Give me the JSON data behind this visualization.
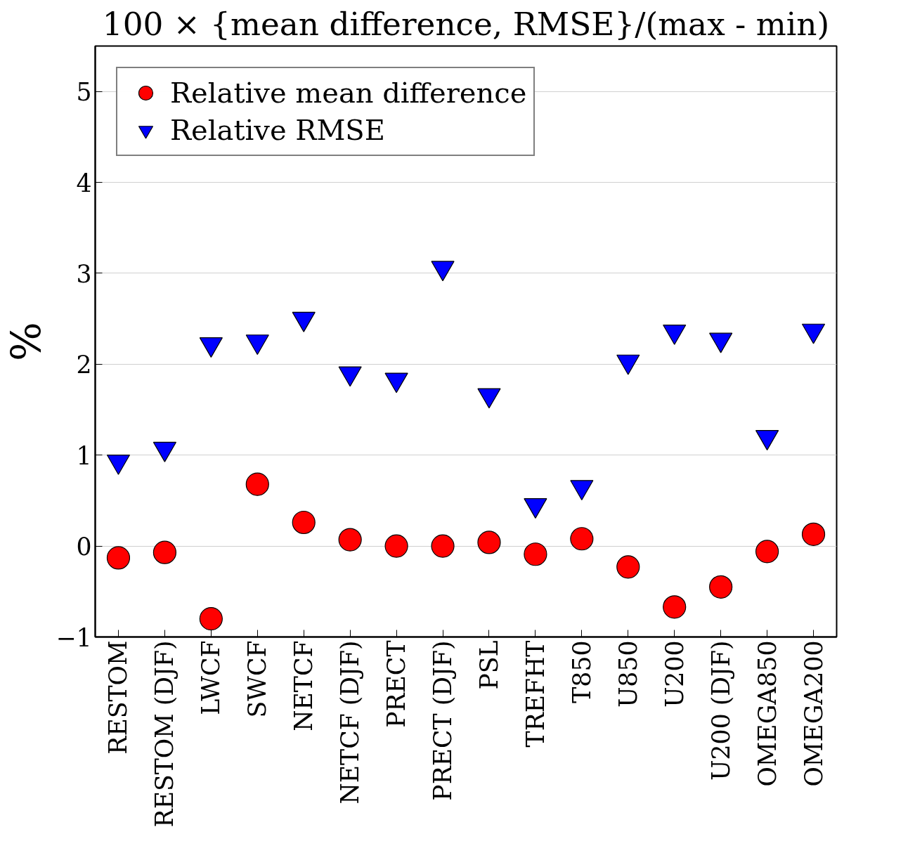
{
  "chart_data": {
    "type": "scatter",
    "title": "100 × {mean difference, RMSE}/(max - min)",
    "ylabel": "%",
    "categories": [
      "RESTOM",
      "RESTOM (DJF)",
      "LWCF",
      "SWCF",
      "NETCF",
      "NETCF (DJF)",
      "PRECT",
      "PRECT (DJF)",
      "PSL",
      "TREFHT",
      "T850",
      "U850",
      "U200",
      "U200 (DJF)",
      "OMEGA850",
      "OMEGA200"
    ],
    "series": [
      {
        "name": "Relative mean difference",
        "color": "#ff0000",
        "marker": "circle",
        "values": [
          -0.13,
          -0.07,
          -0.8,
          0.68,
          0.26,
          0.07,
          0.0,
          0.0,
          0.04,
          -0.09,
          0.08,
          -0.23,
          -0.67,
          -0.45,
          -0.06,
          0.13
        ]
      },
      {
        "name": "Relative RMSE",
        "color": "#0000ff",
        "marker": "triangle",
        "values": [
          0.93,
          1.07,
          2.22,
          2.25,
          2.5,
          1.9,
          1.83,
          3.06,
          1.66,
          0.45,
          0.65,
          2.03,
          2.36,
          2.27,
          1.2,
          2.37
        ]
      }
    ],
    "ylim": [
      -1,
      5.5
    ],
    "yticks": [
      {
        "value": -1,
        "label": "−1"
      },
      0,
      1,
      2,
      3,
      4,
      5
    ],
    "grid": "y",
    "legend": "top left"
  }
}
